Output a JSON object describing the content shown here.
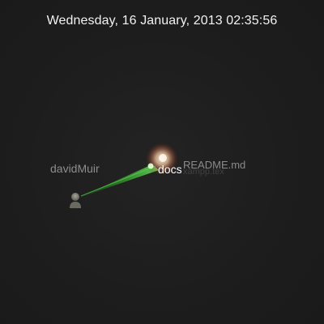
{
  "header": {
    "timestamp": "Wednesday, 16 January, 2013 02:35:56"
  },
  "visualization": {
    "user_name": "davidMuir",
    "directory_name": "docs",
    "file_name": "README.md",
    "file_ghost_name": "xampp.tex",
    "beam_color": "#2fa82a",
    "glow_color": "#f2c9a0"
  }
}
